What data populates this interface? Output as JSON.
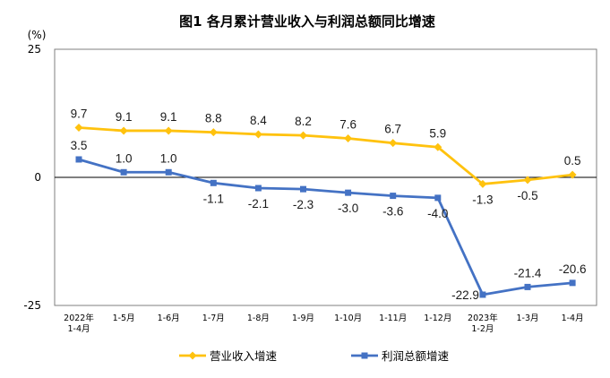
{
  "chart_data": {
    "type": "line",
    "title": "图1  各月累计营业收入与利润总额同比增速",
    "ylabel": "(%)",
    "ylim": [
      -25,
      25
    ],
    "yticks": [
      "25",
      "0",
      "-25"
    ],
    "grid": false,
    "legend": "bottom",
    "categories": [
      [
        "2022年",
        "1-4月"
      ],
      [
        "1-5月"
      ],
      [
        "1-6月"
      ],
      [
        "1-7月"
      ],
      [
        "1-8月"
      ],
      [
        "1-9月"
      ],
      [
        "1-10月"
      ],
      [
        "1-11月"
      ],
      [
        "1-12月"
      ],
      [
        "2023年",
        "1-2月"
      ],
      [
        "1-3月"
      ],
      [
        "1-4月"
      ]
    ],
    "series": [
      {
        "name": "营业收入增速",
        "color": "#FFC20E",
        "values": [
          9.7,
          9.1,
          9.1,
          8.8,
          8.4,
          8.2,
          7.6,
          6.7,
          5.9,
          -1.3,
          -0.5,
          0.5
        ],
        "labels": [
          "9.7",
          "9.1",
          "9.1",
          "8.8",
          "8.4",
          "8.2",
          "7.6",
          "6.7",
          "5.9",
          "-1.3",
          "-0.5",
          "0.5"
        ],
        "label_pos": [
          "above",
          "above",
          "above",
          "above",
          "above",
          "above",
          "above",
          "above",
          "above",
          "below",
          "below",
          "above"
        ]
      },
      {
        "name": "利润总额增速",
        "color": "#4472C4",
        "values": [
          3.5,
          1.0,
          1.0,
          -1.1,
          -2.1,
          -2.3,
          -3.0,
          -3.6,
          -4.0,
          -22.9,
          -21.4,
          -20.6
        ],
        "labels": [
          "3.5",
          "1.0",
          "1.0",
          "-1.1",
          "-2.1",
          "-2.3",
          "-3.0",
          "-3.6",
          "-4.0",
          "-22.9",
          "-21.4",
          "-20.6"
        ],
        "label_pos": [
          "above",
          "above",
          "above",
          "below",
          "below",
          "below",
          "below",
          "below",
          "below",
          "left",
          "above",
          "above"
        ]
      }
    ]
  }
}
